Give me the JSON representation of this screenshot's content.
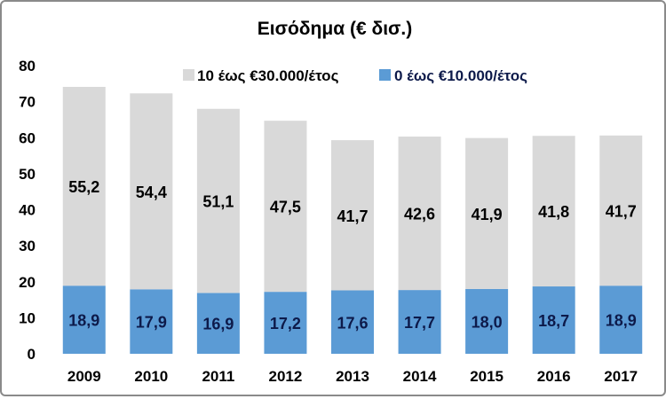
{
  "chart_data": {
    "type": "bar",
    "stacked": true,
    "title": "Εισόδημα (€ δισ.)",
    "categories": [
      "2009",
      "2010",
      "2011",
      "2012",
      "2013",
      "2014",
      "2015",
      "2016",
      "2017"
    ],
    "series": [
      {
        "name": "0 έως €10.000/έτος",
        "values": [
          18.9,
          17.9,
          16.9,
          17.2,
          17.6,
          17.7,
          18.0,
          18.7,
          18.9
        ],
        "labels": [
          "18,9",
          "17,9",
          "16,9",
          "17,2",
          "17,6",
          "17,7",
          "18,0",
          "18,7",
          "18,9"
        ],
        "color": "#5b9bd5",
        "legend_text_color": "#0d1a4a"
      },
      {
        "name": "10 έως €30.000/έτος",
        "values": [
          55.2,
          54.4,
          51.1,
          47.5,
          41.7,
          42.6,
          41.9,
          41.8,
          41.7
        ],
        "labels": [
          "55,2",
          "54,4",
          "51,1",
          "47,5",
          "41,7",
          "42,6",
          "41,9",
          "41,8",
          "41,7"
        ],
        "color": "#d9d9d9",
        "legend_text_color": "#000000"
      }
    ],
    "ylim": [
      0,
      80
    ],
    "yticks": [
      "0",
      "10",
      "20",
      "30",
      "40",
      "50",
      "60",
      "70",
      "80"
    ],
    "grid": false,
    "legend_position": "top-right"
  }
}
